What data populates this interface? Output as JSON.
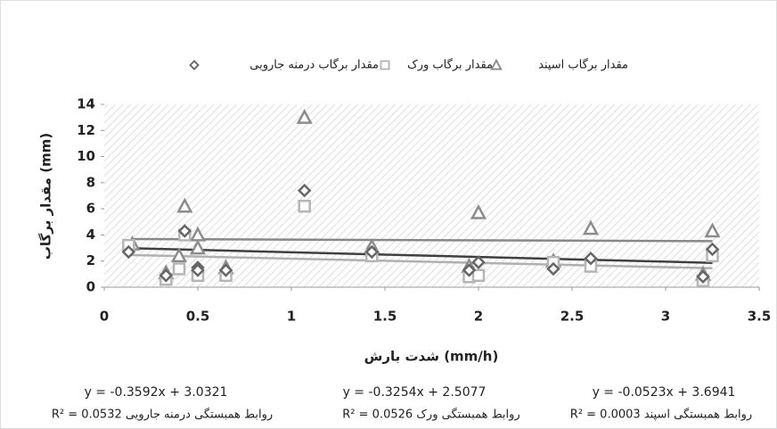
{
  "chart_data": {
    "type": "scatter",
    "xlabel": "شدت بارش (mm/h)",
    "ylabel": "مقدار برگاب (mm)",
    "xlim": [
      0,
      3.5
    ],
    "xticks": [
      0,
      0.5,
      1,
      1.5,
      2,
      2.5,
      3,
      3.5
    ],
    "ylim": [
      0,
      14
    ],
    "yticks": [
      0,
      2,
      4,
      6,
      8,
      10,
      12,
      14
    ],
    "series": [
      {
        "name": "مقدار برگاب اسپند",
        "marker": "triangle",
        "color": "#8c8c8c",
        "x": [
          0.15,
          0.33,
          0.4,
          0.43,
          0.5,
          0.5,
          0.65,
          1.07,
          1.43,
          1.95,
          2,
          2.4,
          2.6,
          3.2,
          3.25
        ],
        "values": [
          3.3,
          1.1,
          2.4,
          6.2,
          4,
          3,
          1.5,
          13,
          3.1,
          1.6,
          5.7,
          2,
          4.5,
          1,
          4.3
        ],
        "trendline": {
          "slope": -0.0523,
          "intercept": 3.6941,
          "color": "#888888",
          "label": "y = -0.0523x + 3.6941",
          "r2_label": "R² = 0.0003 روابط همبستگی اسپند"
        }
      },
      {
        "name": "مقدار برگاب ورک",
        "marker": "square",
        "color": "#b5b5b5",
        "x": [
          0.13,
          0.33,
          0.4,
          0.43,
          0.5,
          0.65,
          1.07,
          1.43,
          1.95,
          2,
          2.4,
          2.6,
          3.2,
          3.25
        ],
        "values": [
          3.2,
          0.6,
          1.4,
          4,
          0.9,
          0.9,
          6.2,
          2.4,
          0.8,
          0.9,
          1.9,
          1.6,
          0.5,
          2.4
        ],
        "trendline": {
          "slope": -0.3254,
          "intercept": 2.5077,
          "color": "#b0b0b0",
          "label": "y = -0.3254x + 2.5077",
          "r2_label": "R² = 0.0526 روابط همبستگی ورک"
        }
      },
      {
        "name": "مقدار برگاب درمنه جارویی",
        "marker": "diamond",
        "color": "#666666",
        "x": [
          0.13,
          0.33,
          0.43,
          0.5,
          0.5,
          0.65,
          1.07,
          1.43,
          1.95,
          2,
          2.4,
          2.6,
          3.2,
          3.25
        ],
        "values": [
          2.7,
          0.9,
          4.3,
          1.5,
          1.3,
          1.3,
          7.4,
          2.7,
          1.3,
          1.9,
          1.4,
          2.2,
          0.8,
          2.9
        ],
        "trendline": {
          "slope": -0.3592,
          "intercept": 3.0321,
          "color": "#404040",
          "label": "y = -0.3592x + 3.0321",
          "r2_label": "R² = 0.0532 روابط همبستگی درمنه جارویی"
        }
      }
    ]
  }
}
